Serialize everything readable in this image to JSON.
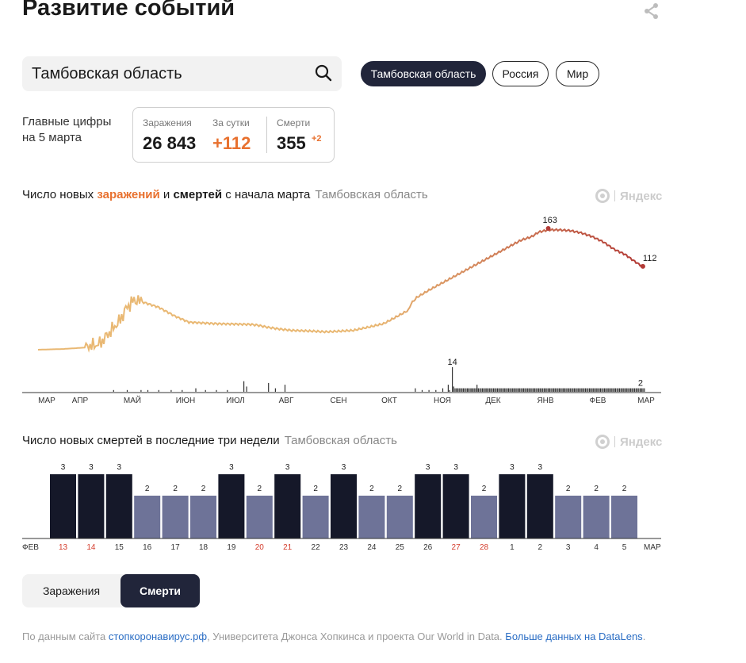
{
  "page_title": "Развитие событий",
  "search": {
    "value": "Тамбовская область"
  },
  "region_buttons": [
    "Тамбовская область",
    "Россия",
    "Мир"
  ],
  "main_figures": {
    "label": "Главные цифры на 5 марта",
    "infections_label": "Заражения",
    "infections_value": "26 843",
    "daily_label": "За сутки",
    "daily_value": "+112",
    "deaths_label": "Смерти",
    "deaths_value": "355",
    "deaths_delta": "+2"
  },
  "chart1": {
    "title_part1": "Число новых ",
    "title_infections": "заражений",
    "title_part2": " и ",
    "title_deaths": "смертей",
    "title_part3": " с начала марта",
    "region": "Тамбовская область",
    "logo_text": "Яндекс"
  },
  "chart2": {
    "title": "Число новых смертей в последние три недели",
    "region": "Тамбовская область",
    "logo_text": "Яндекс"
  },
  "colors": {
    "infections_start": "#e9b873",
    "infections_end": "#b23a36",
    "deaths_high": "#151829",
    "deaths_low": "#6e7398",
    "weekend": "#d43d2d",
    "accent": "#e8712f"
  },
  "chart_data": [
    {
      "type": "line",
      "x_ticks": [
        "МАР",
        "АПР",
        "МАЙ",
        "ИЮН",
        "ИЮЛ",
        "АВГ",
        "СЕН",
        "ОКТ",
        "НОЯ",
        "ДЕК",
        "ЯНВ",
        "ФЕВ",
        "МАР"
      ],
      "series": [
        {
          "name": "заражений",
          "points": [
            [
              0,
              0
            ],
            [
              18,
              1
            ],
            [
              35,
              3
            ],
            [
              45,
              8
            ],
            [
              53,
              25
            ],
            [
              60,
              40
            ],
            [
              64,
              55
            ],
            [
              70,
              67
            ],
            [
              74,
              65
            ],
            [
              78,
              63
            ],
            [
              88,
              57
            ],
            [
              100,
              45
            ],
            [
              110,
              37
            ],
            [
              130,
              35
            ],
            [
              155,
              34
            ],
            [
              160,
              33
            ],
            [
              168,
              30
            ],
            [
              175,
              28
            ],
            [
              185,
              26
            ],
            [
              200,
              25
            ],
            [
              210,
              24
            ],
            [
              220,
              25
            ],
            [
              230,
              26
            ],
            [
              240,
              30
            ],
            [
              252,
              35
            ],
            [
              262,
              45
            ],
            [
              270,
              53
            ],
            [
              272,
              62
            ],
            [
              276,
              70
            ],
            [
              285,
              80
            ],
            [
              295,
              90
            ],
            [
              305,
              100
            ],
            [
              315,
              110
            ],
            [
              325,
              120
            ],
            [
              335,
              130
            ],
            [
              345,
              140
            ],
            [
              352,
              147
            ],
            [
              360,
              152
            ],
            [
              365,
              158
            ],
            [
              372,
              161
            ],
            [
              380,
              161
            ],
            [
              388,
              160
            ],
            [
              396,
              157
            ],
            [
              404,
              152
            ],
            [
              412,
              145
            ],
            [
              420,
              135
            ],
            [
              428,
              128
            ],
            [
              434,
              120
            ],
            [
              438,
              115
            ],
            [
              441,
              112
            ]
          ],
          "annotations": [
            {
              "label": "163",
              "day": 372,
              "value": 163
            },
            {
              "label": "112",
              "day": 441,
              "value": 112
            }
          ]
        },
        {
          "name": "смертей",
          "sparse": [
            [
              55,
              1
            ],
            [
              65,
              1
            ],
            [
              75,
              1
            ],
            [
              80,
              1
            ],
            [
              88,
              1
            ],
            [
              97,
              1
            ],
            [
              105,
              1
            ],
            [
              115,
              2
            ],
            [
              122,
              1
            ],
            [
              130,
              1
            ],
            [
              138,
              1
            ],
            [
              150,
              6
            ],
            [
              152,
              3
            ],
            [
              168,
              5
            ],
            [
              173,
              2
            ],
            [
              180,
              4
            ],
            [
              275,
              2
            ],
            [
              280,
              1
            ],
            [
              285,
              1
            ],
            [
              290,
              1
            ],
            [
              295,
              2
            ],
            [
              299,
              4
            ],
            [
              300,
              1
            ],
            [
              302,
              14
            ],
            [
              303,
              3
            ],
            [
              320,
              4
            ]
          ],
          "daily_from": 304,
          "daily_to": 442,
          "daily_value": 2,
          "annotations": [
            {
              "label": "14",
              "day": 302,
              "value": 14
            },
            {
              "label": "2",
              "day": 441,
              "value": 2
            }
          ]
        }
      ]
    },
    {
      "type": "bar",
      "categories": [
        "13",
        "14",
        "15",
        "16",
        "17",
        "18",
        "19",
        "20",
        "21",
        "22",
        "23",
        "24",
        "25",
        "26",
        "27",
        "28",
        "1",
        "2",
        "3",
        "4",
        "5"
      ],
      "values": [
        3,
        3,
        3,
        2,
        2,
        2,
        3,
        2,
        3,
        2,
        3,
        2,
        2,
        3,
        3,
        2,
        3,
        3,
        2,
        2,
        2
      ],
      "weekend_flags": [
        1,
        1,
        0,
        0,
        0,
        0,
        0,
        1,
        1,
        0,
        0,
        0,
        0,
        0,
        1,
        1,
        0,
        0,
        0,
        0,
        0
      ],
      "axis_left_label": "ФЕВ",
      "axis_right_label": "МАР"
    }
  ],
  "toggle": {
    "infections": "Заражения",
    "deaths": "Смерти"
  },
  "footer": {
    "prefix": "По данным сайта ",
    "link1": "стопкоронавирус.рф",
    "middle": ",  Университета Джонса Хопкинса и  проекта Our World in Data.",
    "link2": "Больше данных на DataLens",
    "suffix": "."
  }
}
